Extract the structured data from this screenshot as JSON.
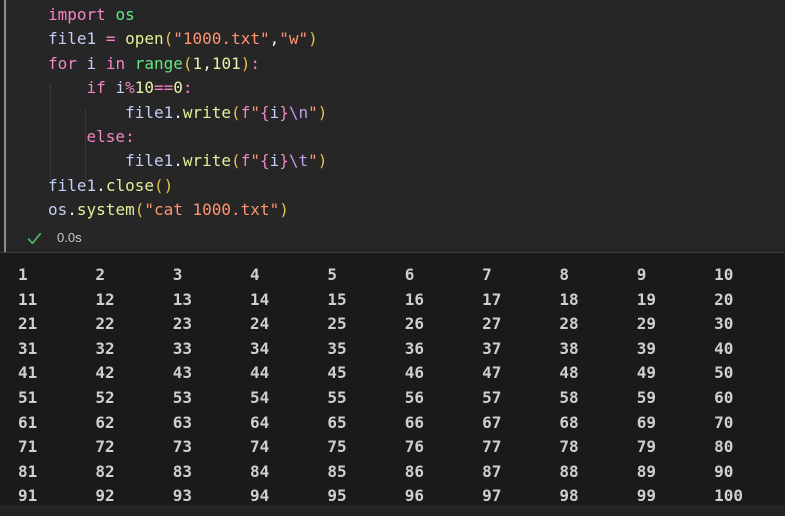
{
  "colors": {
    "kw": "#F286C4",
    "green": "#62E884",
    "fn": "#E7EE98",
    "str": "#FF9470",
    "num": "#E9F0A6",
    "var": "#C3CDF5",
    "esc": "#BF9EEE",
    "br": "#E2C14C",
    "fg": "#F0F0EA",
    "output_text": "#CFCFCF",
    "check_green": "#4BB865",
    "cell_bg": "#262626",
    "output_bg": "#1A1A1A",
    "focus_bar": "#8F8F8F"
  },
  "editor": {
    "code": {
      "lines": [
        [
          {
            "t": "import",
            "c": "kw"
          },
          {
            "t": " ",
            "c": "fg"
          },
          {
            "t": "os",
            "c": "green"
          }
        ],
        [
          {
            "t": "file1",
            "c": "var"
          },
          {
            "t": " ",
            "c": "fg"
          },
          {
            "t": "=",
            "c": "kw"
          },
          {
            "t": " ",
            "c": "fg"
          },
          {
            "t": "open",
            "c": "fn"
          },
          {
            "t": "(",
            "c": "br"
          },
          {
            "t": "\"1000.txt\"",
            "c": "str"
          },
          {
            "t": ",",
            "c": "fg"
          },
          {
            "t": "\"w\"",
            "c": "str"
          },
          {
            "t": ")",
            "c": "br"
          }
        ],
        [
          {
            "t": "for",
            "c": "kw"
          },
          {
            "t": " ",
            "c": "fg"
          },
          {
            "t": "i",
            "c": "var"
          },
          {
            "t": " ",
            "c": "fg"
          },
          {
            "t": "in",
            "c": "kw"
          },
          {
            "t": " ",
            "c": "fg"
          },
          {
            "t": "range",
            "c": "green"
          },
          {
            "t": "(",
            "c": "br"
          },
          {
            "t": "1",
            "c": "num"
          },
          {
            "t": ",",
            "c": "fg"
          },
          {
            "t": "101",
            "c": "num"
          },
          {
            "t": ")",
            "c": "br"
          },
          {
            "t": ":",
            "c": "kw"
          }
        ],
        [
          {
            "t": "    ",
            "c": "fg"
          },
          {
            "t": "if",
            "c": "kw"
          },
          {
            "t": " ",
            "c": "fg"
          },
          {
            "t": "i",
            "c": "var"
          },
          {
            "t": "%",
            "c": "kw"
          },
          {
            "t": "10",
            "c": "num"
          },
          {
            "t": "==",
            "c": "kw"
          },
          {
            "t": "0",
            "c": "num"
          },
          {
            "t": ":",
            "c": "kw"
          }
        ],
        [
          {
            "t": "        ",
            "c": "fg"
          },
          {
            "t": "file1",
            "c": "var"
          },
          {
            "t": ".",
            "c": "fg"
          },
          {
            "t": "write",
            "c": "fn"
          },
          {
            "t": "(",
            "c": "br"
          },
          {
            "t": "f",
            "c": "kw"
          },
          {
            "t": "\"",
            "c": "str"
          },
          {
            "t": "{",
            "c": "kw"
          },
          {
            "t": "i",
            "c": "var"
          },
          {
            "t": "}",
            "c": "kw"
          },
          {
            "t": "\\n",
            "c": "esc"
          },
          {
            "t": "\"",
            "c": "str"
          },
          {
            "t": ")",
            "c": "br"
          }
        ],
        [
          {
            "t": "    ",
            "c": "fg"
          },
          {
            "t": "else",
            "c": "kw"
          },
          {
            "t": ":",
            "c": "kw"
          }
        ],
        [
          {
            "t": "        ",
            "c": "fg"
          },
          {
            "t": "file1",
            "c": "var"
          },
          {
            "t": ".",
            "c": "fg"
          },
          {
            "t": "write",
            "c": "fn"
          },
          {
            "t": "(",
            "c": "br"
          },
          {
            "t": "f",
            "c": "kw"
          },
          {
            "t": "\"",
            "c": "str"
          },
          {
            "t": "{",
            "c": "kw"
          },
          {
            "t": "i",
            "c": "var"
          },
          {
            "t": "}",
            "c": "kw"
          },
          {
            "t": "\\t",
            "c": "esc"
          },
          {
            "t": "\"",
            "c": "str"
          },
          {
            "t": ")",
            "c": "br"
          }
        ],
        [
          {
            "t": "file1",
            "c": "var"
          },
          {
            "t": ".",
            "c": "fg"
          },
          {
            "t": "close",
            "c": "fn"
          },
          {
            "t": "(",
            "c": "br"
          },
          {
            "t": ")",
            "c": "br"
          }
        ],
        [
          {
            "t": "os",
            "c": "var"
          },
          {
            "t": ".",
            "c": "fg"
          },
          {
            "t": "system",
            "c": "fn"
          },
          {
            "t": "(",
            "c": "br"
          },
          {
            "t": "\"cat 1000.txt\"",
            "c": "str"
          },
          {
            "t": ")",
            "c": "br"
          }
        ]
      ]
    },
    "execution": {
      "status_icon": "check",
      "time": "0.0s"
    }
  },
  "output": {
    "rows": [
      [
        1,
        2,
        3,
        4,
        5,
        6,
        7,
        8,
        9,
        10
      ],
      [
        11,
        12,
        13,
        14,
        15,
        16,
        17,
        18,
        19,
        20
      ],
      [
        21,
        22,
        23,
        24,
        25,
        26,
        27,
        28,
        29,
        30
      ],
      [
        31,
        32,
        33,
        34,
        35,
        36,
        37,
        38,
        39,
        40
      ],
      [
        41,
        42,
        43,
        44,
        45,
        46,
        47,
        48,
        49,
        50
      ],
      [
        51,
        52,
        53,
        54,
        55,
        56,
        57,
        58,
        59,
        60
      ],
      [
        61,
        62,
        63,
        64,
        65,
        66,
        67,
        68,
        69,
        70
      ],
      [
        71,
        72,
        73,
        74,
        75,
        76,
        77,
        78,
        79,
        80
      ],
      [
        81,
        82,
        83,
        84,
        85,
        86,
        87,
        88,
        89,
        90
      ],
      [
        91,
        92,
        93,
        94,
        95,
        96,
        97,
        98,
        99,
        100
      ]
    ]
  }
}
